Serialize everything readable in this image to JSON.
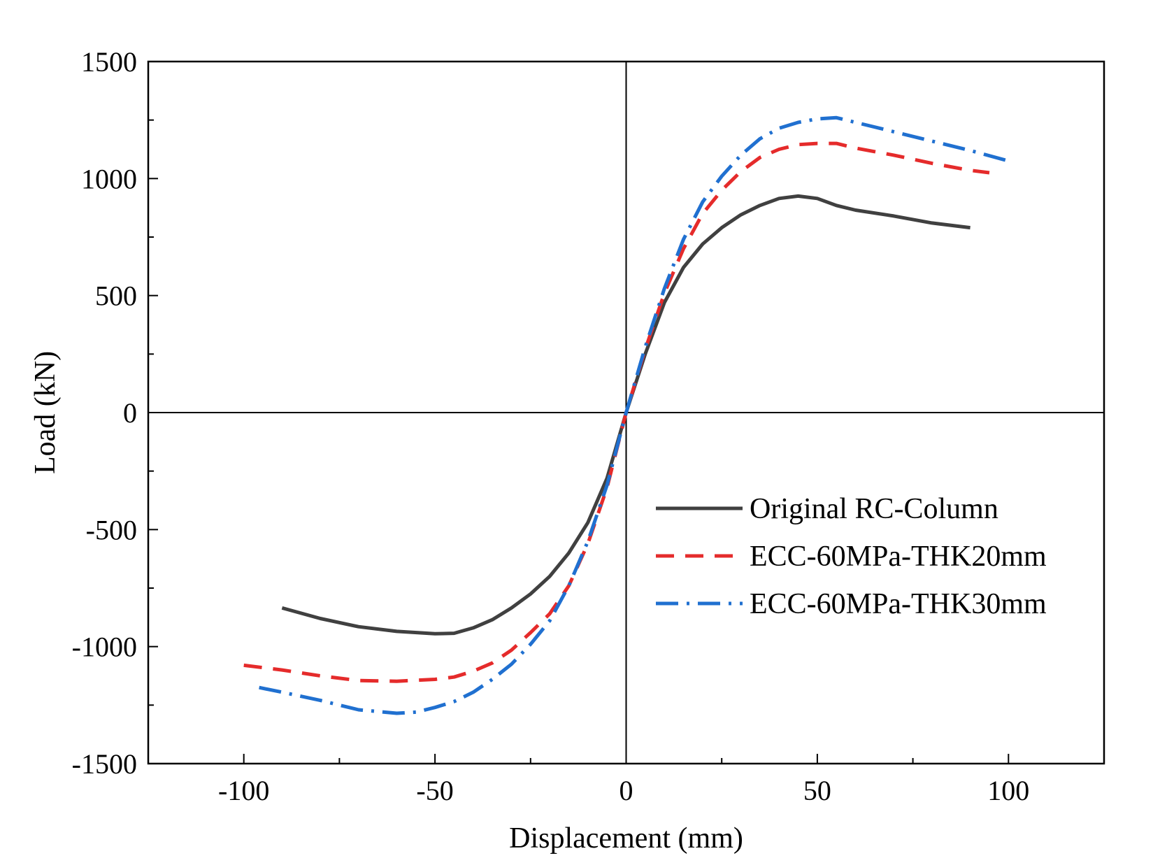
{
  "chart_data": {
    "type": "line",
    "title": "",
    "xlabel": "Displacement (mm)",
    "ylabel": "Load (kN)",
    "xlim": [
      -125,
      125
    ],
    "ylim": [
      -1500,
      1500
    ],
    "x_ticks": [
      -100,
      -50,
      0,
      50,
      100
    ],
    "x_tick_labels": [
      "-100",
      "-50",
      "0",
      "50",
      "100"
    ],
    "y_ticks": [
      -1500,
      -1000,
      -500,
      0,
      500,
      1000,
      1500
    ],
    "y_tick_labels": [
      "-1500",
      "-1000",
      "-500",
      "0",
      "500",
      "1000",
      "1500"
    ],
    "grid": false,
    "zero_lines": true,
    "legend_position": "center-right",
    "series": [
      {
        "name": "Original RC-Column",
        "color": "#404040",
        "dash": "solid",
        "points": [
          [
            -90,
            -835
          ],
          [
            -80,
            -880
          ],
          [
            -70,
            -915
          ],
          [
            -60,
            -935
          ],
          [
            -50,
            -945
          ],
          [
            -45,
            -943
          ],
          [
            -40,
            -920
          ],
          [
            -35,
            -885
          ],
          [
            -30,
            -835
          ],
          [
            -25,
            -775
          ],
          [
            -20,
            -700
          ],
          [
            -15,
            -600
          ],
          [
            -10,
            -470
          ],
          [
            -5,
            -280
          ],
          [
            0,
            0
          ],
          [
            5,
            250
          ],
          [
            10,
            470
          ],
          [
            15,
            620
          ],
          [
            20,
            720
          ],
          [
            25,
            790
          ],
          [
            30,
            845
          ],
          [
            35,
            885
          ],
          [
            40,
            915
          ],
          [
            45,
            925
          ],
          [
            50,
            915
          ],
          [
            55,
            885
          ],
          [
            60,
            865
          ],
          [
            70,
            840
          ],
          [
            80,
            810
          ],
          [
            90,
            790
          ]
        ]
      },
      {
        "name": "ECC-60MPa-THK20mm",
        "color": "#e52b2b",
        "dash": "dashed",
        "points": [
          [
            -100,
            -1080
          ],
          [
            -90,
            -1100
          ],
          [
            -80,
            -1125
          ],
          [
            -70,
            -1145
          ],
          [
            -60,
            -1148
          ],
          [
            -50,
            -1140
          ],
          [
            -45,
            -1130
          ],
          [
            -40,
            -1105
          ],
          [
            -35,
            -1070
          ],
          [
            -30,
            -1015
          ],
          [
            -25,
            -940
          ],
          [
            -20,
            -860
          ],
          [
            -15,
            -740
          ],
          [
            -10,
            -560
          ],
          [
            -5,
            -320
          ],
          [
            0,
            0
          ],
          [
            5,
            270
          ],
          [
            10,
            510
          ],
          [
            15,
            700
          ],
          [
            20,
            850
          ],
          [
            25,
            950
          ],
          [
            30,
            1030
          ],
          [
            35,
            1090
          ],
          [
            40,
            1125
          ],
          [
            45,
            1145
          ],
          [
            50,
            1150
          ],
          [
            55,
            1150
          ],
          [
            60,
            1130
          ],
          [
            70,
            1100
          ],
          [
            80,
            1065
          ],
          [
            90,
            1035
          ],
          [
            95,
            1025
          ]
        ]
      },
      {
        "name": "ECC-60MPa-THK30mm",
        "color": "#2070d0",
        "dash": "dashdot",
        "points": [
          [
            -96,
            -1175
          ],
          [
            -90,
            -1195
          ],
          [
            -80,
            -1230
          ],
          [
            -70,
            -1270
          ],
          [
            -60,
            -1285
          ],
          [
            -55,
            -1280
          ],
          [
            -50,
            -1260
          ],
          [
            -45,
            -1235
          ],
          [
            -40,
            -1195
          ],
          [
            -35,
            -1140
          ],
          [
            -30,
            -1075
          ],
          [
            -25,
            -990
          ],
          [
            -20,
            -890
          ],
          [
            -15,
            -740
          ],
          [
            -10,
            -550
          ],
          [
            -5,
            -310
          ],
          [
            0,
            0
          ],
          [
            5,
            280
          ],
          [
            10,
            530
          ],
          [
            15,
            740
          ],
          [
            20,
            900
          ],
          [
            25,
            1010
          ],
          [
            30,
            1100
          ],
          [
            35,
            1170
          ],
          [
            40,
            1215
          ],
          [
            45,
            1240
          ],
          [
            50,
            1255
          ],
          [
            55,
            1260
          ],
          [
            60,
            1240
          ],
          [
            70,
            1200
          ],
          [
            80,
            1160
          ],
          [
            90,
            1120
          ],
          [
            100,
            1075
          ]
        ]
      }
    ]
  }
}
